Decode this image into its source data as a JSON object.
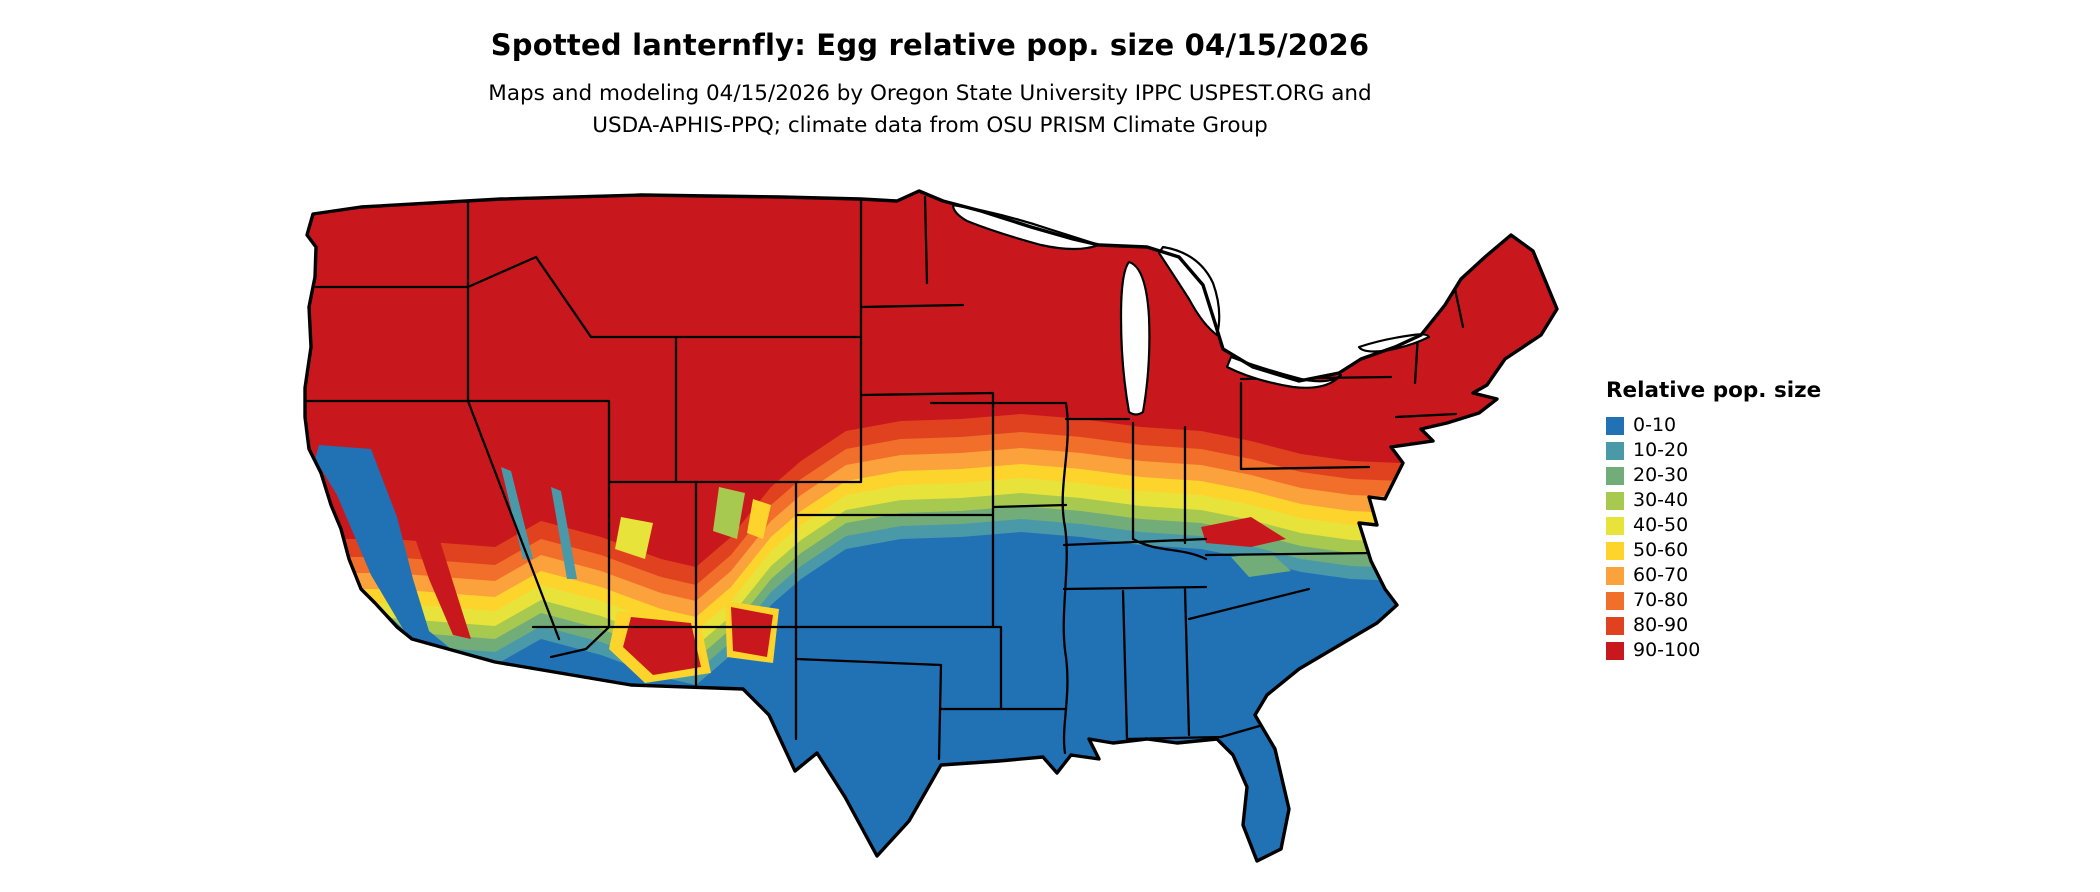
{
  "header": {
    "title": "Spotted lanternfly: Egg relative pop. size 04/15/2026",
    "subtitle_line1": "Maps and modeling 04/15/2026 by Oregon State University IPPC USPEST.ORG and",
    "subtitle_line2": "USDA-APHIS-PPQ; climate data from OSU PRISM Climate Group"
  },
  "legend": {
    "title": "Relative pop. size",
    "items": [
      {
        "label": "0-10",
        "color": "#2171b5"
      },
      {
        "label": "10-20",
        "color": "#4a99a8"
      },
      {
        "label": "20-30",
        "color": "#72ad79"
      },
      {
        "label": "30-40",
        "color": "#a8c94f"
      },
      {
        "label": "40-50",
        "color": "#e8e33b"
      },
      {
        "label": "50-60",
        "color": "#fdd42c"
      },
      {
        "label": "60-70",
        "color": "#fba23c"
      },
      {
        "label": "70-80",
        "color": "#f26f2b"
      },
      {
        "label": "80-90",
        "color": "#e0421f"
      },
      {
        "label": "90-100",
        "color": "#c9181d"
      }
    ]
  },
  "map": {
    "outline_color": "#000000",
    "state_border_color": "#000000",
    "water_color": "#ffffff"
  }
}
